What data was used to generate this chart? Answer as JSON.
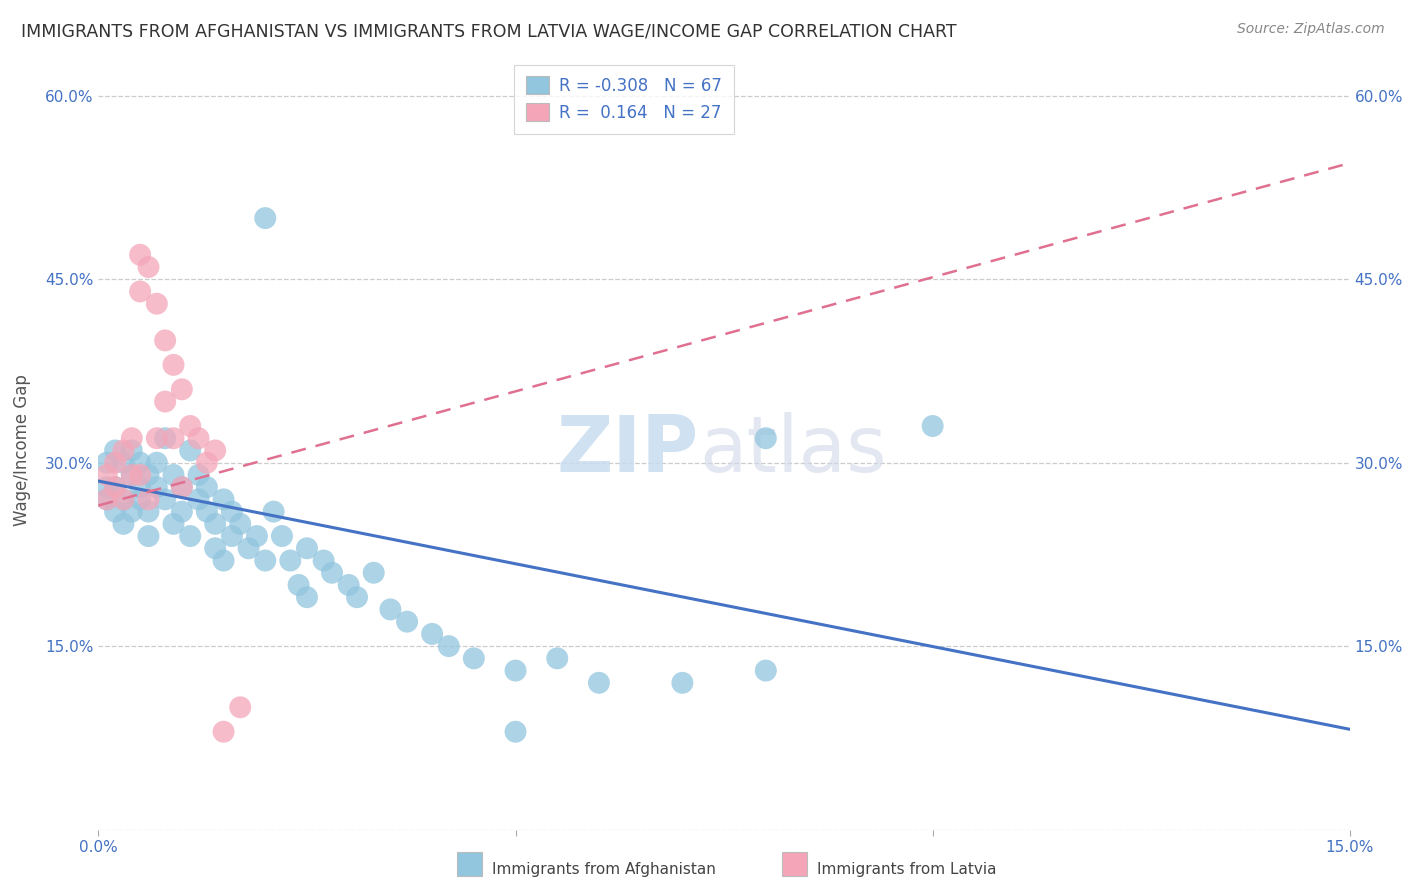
{
  "title": "IMMIGRANTS FROM AFGHANISTAN VS IMMIGRANTS FROM LATVIA WAGE/INCOME GAP CORRELATION CHART",
  "source": "Source: ZipAtlas.com",
  "ylabel": "Wage/Income Gap",
  "xlim": [
    0.0,
    0.15
  ],
  "ylim": [
    0.0,
    0.62
  ],
  "yticks": [
    0.0,
    0.15,
    0.3,
    0.45,
    0.6
  ],
  "afghanistan_R": -0.308,
  "afghanistan_N": 67,
  "latvia_R": 0.164,
  "latvia_N": 27,
  "afghanistan_color": "#92C5DE",
  "latvia_color": "#F4A6B8",
  "afghanistan_line_color": "#4472C4",
  "latvia_line_color": "#E07090",
  "watermark_zip": "ZIP",
  "watermark_atlas": "atlas",
  "legend_entries": [
    "Immigrants from Afghanistan",
    "Immigrants from Latvia"
  ],
  "afghanistan_line": [
    0.0,
    0.285,
    0.15,
    0.082
  ],
  "latvia_line": [
    0.0,
    0.265,
    0.15,
    0.545
  ],
  "afghanistan_points": [
    [
      0.001,
      0.3
    ],
    [
      0.001,
      0.27
    ],
    [
      0.001,
      0.28
    ],
    [
      0.002,
      0.31
    ],
    [
      0.002,
      0.26
    ],
    [
      0.002,
      0.28
    ],
    [
      0.003,
      0.3
    ],
    [
      0.003,
      0.27
    ],
    [
      0.003,
      0.25
    ],
    [
      0.004,
      0.29
    ],
    [
      0.004,
      0.26
    ],
    [
      0.004,
      0.31
    ],
    [
      0.005,
      0.28
    ],
    [
      0.005,
      0.27
    ],
    [
      0.005,
      0.3
    ],
    [
      0.006,
      0.29
    ],
    [
      0.006,
      0.26
    ],
    [
      0.006,
      0.24
    ],
    [
      0.007,
      0.28
    ],
    [
      0.007,
      0.3
    ],
    [
      0.008,
      0.27
    ],
    [
      0.008,
      0.32
    ],
    [
      0.009,
      0.29
    ],
    [
      0.009,
      0.25
    ],
    [
      0.01,
      0.28
    ],
    [
      0.01,
      0.26
    ],
    [
      0.011,
      0.31
    ],
    [
      0.011,
      0.24
    ],
    [
      0.012,
      0.27
    ],
    [
      0.012,
      0.29
    ],
    [
      0.013,
      0.26
    ],
    [
      0.013,
      0.28
    ],
    [
      0.014,
      0.25
    ],
    [
      0.014,
      0.23
    ],
    [
      0.015,
      0.27
    ],
    [
      0.015,
      0.22
    ],
    [
      0.016,
      0.26
    ],
    [
      0.016,
      0.24
    ],
    [
      0.017,
      0.25
    ],
    [
      0.018,
      0.23
    ],
    [
      0.019,
      0.24
    ],
    [
      0.02,
      0.22
    ],
    [
      0.021,
      0.26
    ],
    [
      0.022,
      0.24
    ],
    [
      0.023,
      0.22
    ],
    [
      0.024,
      0.2
    ],
    [
      0.025,
      0.23
    ],
    [
      0.025,
      0.19
    ],
    [
      0.027,
      0.22
    ],
    [
      0.028,
      0.21
    ],
    [
      0.03,
      0.2
    ],
    [
      0.031,
      0.19
    ],
    [
      0.033,
      0.21
    ],
    [
      0.035,
      0.18
    ],
    [
      0.037,
      0.17
    ],
    [
      0.04,
      0.16
    ],
    [
      0.042,
      0.15
    ],
    [
      0.045,
      0.14
    ],
    [
      0.05,
      0.13
    ],
    [
      0.055,
      0.14
    ],
    [
      0.06,
      0.12
    ],
    [
      0.07,
      0.12
    ],
    [
      0.08,
      0.13
    ],
    [
      0.02,
      0.5
    ],
    [
      0.1,
      0.33
    ],
    [
      0.08,
      0.32
    ],
    [
      0.05,
      0.08
    ]
  ],
  "latvia_points": [
    [
      0.001,
      0.29
    ],
    [
      0.001,
      0.27
    ],
    [
      0.002,
      0.3
    ],
    [
      0.002,
      0.28
    ],
    [
      0.003,
      0.31
    ],
    [
      0.003,
      0.27
    ],
    [
      0.004,
      0.29
    ],
    [
      0.004,
      0.32
    ],
    [
      0.005,
      0.47
    ],
    [
      0.005,
      0.44
    ],
    [
      0.005,
      0.29
    ],
    [
      0.006,
      0.46
    ],
    [
      0.006,
      0.27
    ],
    [
      0.007,
      0.43
    ],
    [
      0.007,
      0.32
    ],
    [
      0.008,
      0.4
    ],
    [
      0.008,
      0.35
    ],
    [
      0.009,
      0.38
    ],
    [
      0.009,
      0.32
    ],
    [
      0.01,
      0.36
    ],
    [
      0.01,
      0.28
    ],
    [
      0.011,
      0.33
    ],
    [
      0.012,
      0.32
    ],
    [
      0.013,
      0.3
    ],
    [
      0.014,
      0.31
    ],
    [
      0.015,
      0.08
    ],
    [
      0.017,
      0.1
    ]
  ]
}
